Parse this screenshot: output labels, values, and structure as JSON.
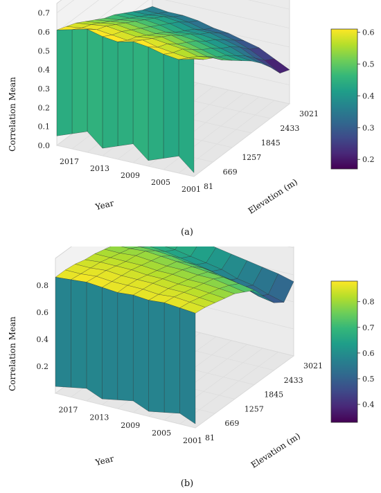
{
  "chart_data": [
    {
      "panel_label": "(a)",
      "type": "surface3d",
      "zlabel": "Correlation Mean",
      "xlabel": "Year",
      "ylabel": "Elevation (m)",
      "year_ticks": [
        "2017",
        "2013",
        "2009",
        "2005",
        "2001"
      ],
      "elevation_ticks": [
        "81",
        "669",
        "1257",
        "1845",
        "2433",
        "3021"
      ],
      "z_ticks": [
        "0.0",
        "0.1",
        "0.2",
        "0.3",
        "0.4",
        "0.5",
        "0.6",
        "0.7"
      ],
      "zlim": [
        0,
        0.75
      ],
      "colorbar": {
        "ticks": [
          "0.2",
          "0.3",
          "0.4",
          "0.5",
          "0.6"
        ],
        "range": [
          0.17,
          0.61
        ],
        "colormap": "viridis"
      },
      "years": [
        2001,
        2003,
        2005,
        2007,
        2009,
        2011,
        2013,
        2015,
        2017,
        2019
      ],
      "elevations": [
        81,
        375,
        669,
        963,
        1257,
        1551,
        1845,
        2139,
        2433,
        2727,
        3021
      ],
      "z": [
        [
          0.62,
          0.58,
          0.55,
          0.5,
          0.46,
          0.42,
          0.38,
          0.33,
          0.27,
          0.2,
          0.18
        ],
        [
          0.6,
          0.57,
          0.54,
          0.5,
          0.46,
          0.43,
          0.39,
          0.35,
          0.3,
          0.25,
          0.22
        ],
        [
          0.61,
          0.58,
          0.56,
          0.52,
          0.48,
          0.45,
          0.41,
          0.38,
          0.34,
          0.29,
          0.26
        ],
        [
          0.63,
          0.59,
          0.57,
          0.53,
          0.5,
          0.47,
          0.43,
          0.4,
          0.36,
          0.32,
          0.28
        ],
        [
          0.64,
          0.61,
          0.58,
          0.55,
          0.52,
          0.48,
          0.45,
          0.41,
          0.38,
          0.34,
          0.3
        ],
        [
          0.62,
          0.59,
          0.57,
          0.54,
          0.51,
          0.48,
          0.44,
          0.41,
          0.38,
          0.34,
          0.31
        ],
        [
          0.63,
          0.6,
          0.58,
          0.55,
          0.52,
          0.49,
          0.46,
          0.43,
          0.4,
          0.36,
          0.33
        ],
        [
          0.65,
          0.61,
          0.59,
          0.56,
          0.53,
          0.5,
          0.47,
          0.44,
          0.41,
          0.37,
          0.34
        ],
        [
          0.63,
          0.6,
          0.58,
          0.55,
          0.52,
          0.49,
          0.46,
          0.43,
          0.4,
          0.37,
          0.34
        ],
        [
          0.61,
          0.59,
          0.57,
          0.54,
          0.51,
          0.48,
          0.46,
          0.43,
          0.4,
          0.37,
          0.35
        ]
      ],
      "front_drop": {
        "ymin": 0.02,
        "ymax": 0.12
      }
    },
    {
      "panel_label": "(b)",
      "type": "surface3d",
      "zlabel": "Correlation Mean",
      "xlabel": "Year",
      "ylabel": "Elevation (m)",
      "year_ticks": [
        "2017",
        "2013",
        "2009",
        "2005",
        "2001"
      ],
      "elevation_ticks": [
        "81",
        "669",
        "1257",
        "1845",
        "2433",
        "3021"
      ],
      "z_ticks": [
        "0.2",
        "0.4",
        "0.6",
        "0.8"
      ],
      "zlim": [
        0,
        1.0
      ],
      "colorbar": {
        "ticks": [
          "0.4",
          "0.5",
          "0.6",
          "0.7",
          "0.8"
        ],
        "range": [
          0.33,
          0.88
        ],
        "colormap": "viridis"
      },
      "years": [
        2001,
        2003,
        2005,
        2007,
        2009,
        2011,
        2013,
        2015,
        2017,
        2019
      ],
      "elevations": [
        81,
        375,
        669,
        963,
        1257,
        1551,
        1845,
        2139,
        2433,
        2727,
        3021
      ],
      "z": [
        [
          0.85,
          0.84,
          0.82,
          0.8,
          0.78,
          0.74,
          0.7,
          0.6,
          0.5,
          0.45,
          0.55
        ],
        [
          0.86,
          0.85,
          0.83,
          0.81,
          0.79,
          0.76,
          0.72,
          0.62,
          0.52,
          0.48,
          0.58
        ],
        [
          0.87,
          0.86,
          0.84,
          0.82,
          0.8,
          0.78,
          0.74,
          0.66,
          0.56,
          0.52,
          0.6
        ],
        [
          0.86,
          0.85,
          0.84,
          0.82,
          0.8,
          0.78,
          0.75,
          0.68,
          0.58,
          0.54,
          0.62
        ],
        [
          0.87,
          0.86,
          0.85,
          0.83,
          0.81,
          0.79,
          0.76,
          0.7,
          0.62,
          0.58,
          0.64
        ],
        [
          0.86,
          0.86,
          0.85,
          0.83,
          0.81,
          0.79,
          0.77,
          0.71,
          0.64,
          0.6,
          0.66
        ],
        [
          0.87,
          0.86,
          0.85,
          0.84,
          0.82,
          0.8,
          0.78,
          0.73,
          0.66,
          0.62,
          0.68
        ],
        [
          0.88,
          0.87,
          0.86,
          0.84,
          0.82,
          0.81,
          0.79,
          0.74,
          0.68,
          0.64,
          0.7
        ],
        [
          0.87,
          0.86,
          0.85,
          0.84,
          0.82,
          0.8,
          0.78,
          0.74,
          0.69,
          0.65,
          0.7
        ],
        [
          0.86,
          0.86,
          0.85,
          0.83,
          0.82,
          0.8,
          0.78,
          0.74,
          0.7,
          0.66,
          0.71
        ]
      ],
      "front_drop": {
        "ymin": 0.03,
        "ymax": 0.1
      }
    }
  ]
}
